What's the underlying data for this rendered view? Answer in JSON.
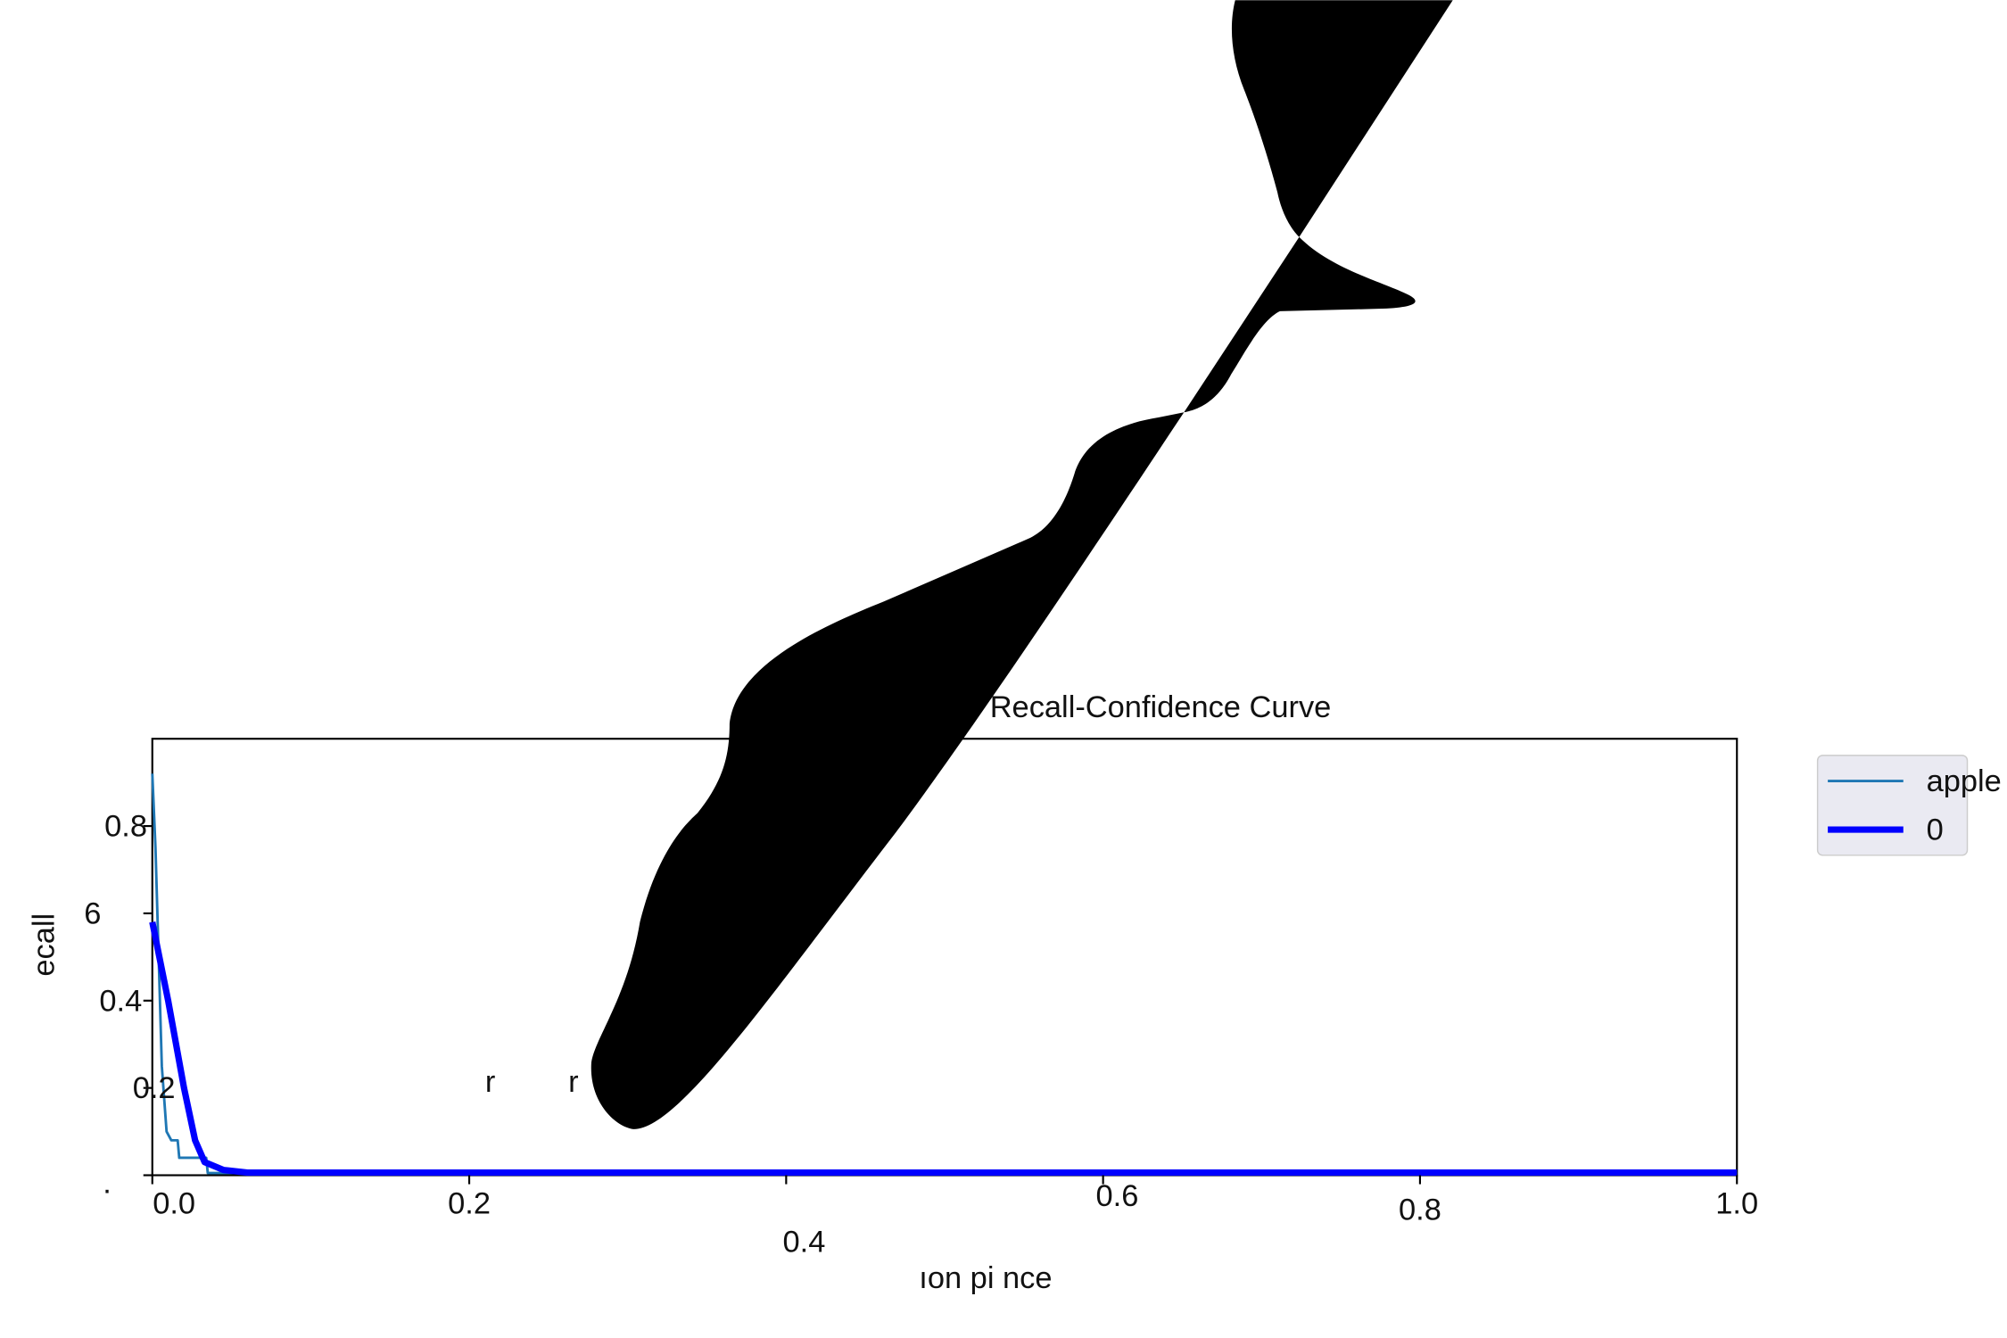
{
  "chart_data": {
    "type": "line",
    "title": "Recall-Confidence Curve",
    "xlabel": "ıon pi nce",
    "ylabel": "ecall",
    "xlim": [
      0,
      1
    ],
    "ylim": [
      0,
      1
    ],
    "xticks": [
      0,
      0.2,
      0.4,
      0.6,
      0.8,
      1
    ],
    "yticks": [
      {
        "value": 0,
        "label": "."
      },
      0.2,
      0.4,
      {
        "value": 0.6,
        "label": "6"
      },
      0.8
    ],
    "xtick_labels": [
      "0.0",
      "0.2",
      "0.4",
      "0.6",
      "0.8",
      "1.0"
    ],
    "annotations": [
      "r",
      "r"
    ],
    "legend": "outside right",
    "series": [
      {
        "name": "apple",
        "color": "#1f77b4",
        "linewidth": 2,
        "x": [
          0,
          0.002,
          0.004,
          0.006,
          0.009,
          0.012,
          0.016,
          0.017,
          0.034,
          0.035,
          1
        ],
        "values": [
          0.92,
          0.75,
          0.5,
          0.25,
          0.1,
          0.08,
          0.08,
          0.04,
          0.04,
          0.005,
          0.005
        ]
      },
      {
        "name": "0",
        "color": "#0000ff",
        "linewidth": 5,
        "x": [
          0,
          0.01,
          0.02,
          0.027,
          0.033,
          0.045,
          0.06,
          1
        ],
        "values": [
          0.58,
          0.4,
          0.2,
          0.08,
          0.03,
          0.012,
          0.006,
          0.006
        ]
      }
    ]
  }
}
